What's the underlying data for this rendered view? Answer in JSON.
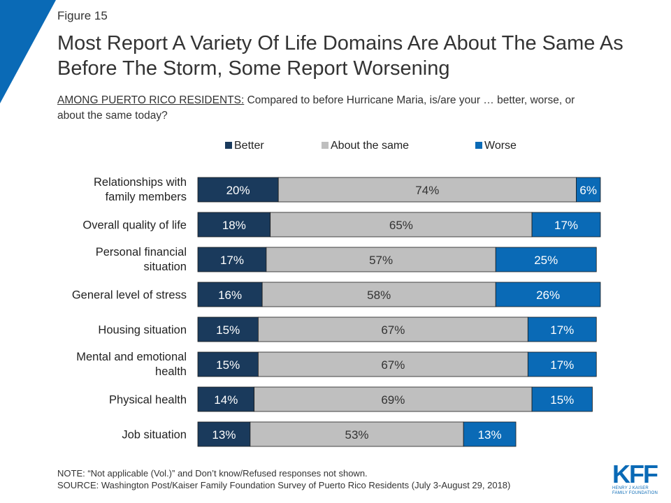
{
  "figure_label": "Figure 15",
  "title": "Most Report A Variety Of Life Domains Are About The Same As Before The Storm, Some Report Worsening",
  "subtitle_lead": "AMONG PUERTO RICO RESIDENTS:",
  "subtitle_rest": " Compared to before Hurricane Maria, is/are your … better, worse, or about the same today?",
  "note": "NOTE: “Not applicable (Vol.)” and Don’t know/Refused responses not shown.",
  "source": "SOURCE: Washington Post/Kaiser Family Foundation Survey of Puerto Rico Residents (July 3-August 29, 2018)",
  "logo": {
    "mark": "KFF",
    "line1": "HENRY J KAISER",
    "line2": "FAMILY FOUNDATION"
  },
  "colors": {
    "better": "#1a3a5c",
    "same": "#bfbfbf",
    "worse": "#0a6ab6",
    "accent": "#0a6ab6"
  },
  "chart_data": {
    "type": "bar",
    "orientation": "horizontal",
    "stacked": true,
    "value_suffix": "%",
    "legend_position": "top",
    "categories": [
      "Relationships with family members",
      "Overall quality of life",
      "Personal financial situation",
      "General level of stress",
      "Housing situation",
      "Mental and emotional health",
      "Physical health",
      "Job situation"
    ],
    "series": [
      {
        "name": "Better",
        "color": "#1a3a5c",
        "values": [
          20,
          18,
          17,
          16,
          15,
          15,
          14,
          13
        ]
      },
      {
        "name": "About the same",
        "color": "#bfbfbf",
        "values": [
          74,
          65,
          57,
          58,
          67,
          67,
          69,
          53
        ]
      },
      {
        "name": "Worse",
        "color": "#0a6ab6",
        "values": [
          6,
          17,
          25,
          26,
          17,
          17,
          15,
          13
        ]
      }
    ]
  }
}
